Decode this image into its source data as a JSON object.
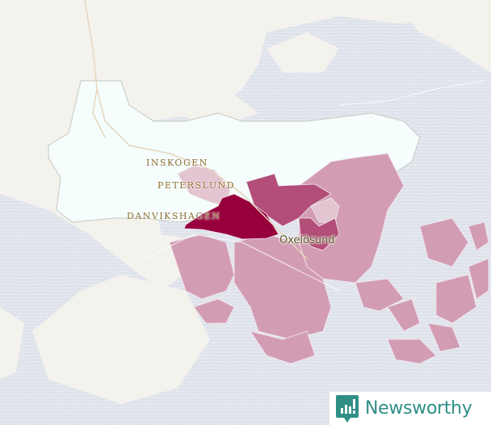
{
  "map": {
    "labels": {
      "inskogen": "INSKOGEN",
      "peterslund": "PETERSLUND",
      "danvikshagen": "DANVIKSHAGEN",
      "city": "Oxelösund"
    },
    "colors": {
      "land": "#f4f2ed",
      "water": "#e3e6ed",
      "highlight_area": "#f5fdfd",
      "choropleth_pale": "#e3c4d1",
      "choropleth_light": "#d29db3",
      "choropleth_medium": "#b24e78",
      "choropleth_dark": "#97003d",
      "roads": "#e6d6bd"
    }
  },
  "branding": {
    "name": "Newsworthy",
    "icon": "bar-chart-speech-bubble-icon",
    "color": "#2f8f86"
  }
}
